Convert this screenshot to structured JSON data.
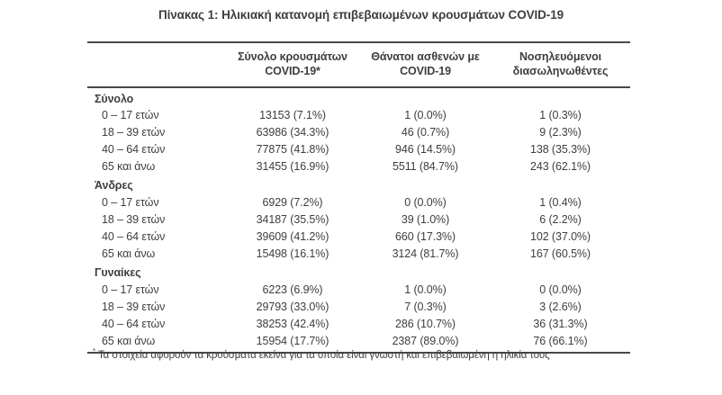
{
  "title": "Πίνακας 1: Ηλικιακή κατανομή επιβεβαιωμένων κρουσμάτων COVID-19",
  "colors": {
    "text": "#3e3e40",
    "rule_lines": "#49494b",
    "background": "#ffffff"
  },
  "table": {
    "columns": [
      {
        "line1": "Σύνολο κρουσμάτων",
        "line2": "COVID-19*"
      },
      {
        "line1": "Θάνατοι ασθενών με",
        "line2": "COVID-19"
      },
      {
        "line1": "Νοσηλευόμενοι",
        "line2": "διασωληνωθέντες"
      }
    ],
    "sections": [
      {
        "label": "Σύνολο",
        "rows": [
          {
            "age": "0 – 17 ετών",
            "cases": "13153 (7.1%)",
            "deaths": "1 (0.0%)",
            "intubated": "1 (0.3%)"
          },
          {
            "age": "18 – 39 ετών",
            "cases": "63986 (34.3%)",
            "deaths": "46 (0.7%)",
            "intubated": "9 (2.3%)"
          },
          {
            "age": "40 – 64 ετών",
            "cases": "77875 (41.8%)",
            "deaths": "946 (14.5%)",
            "intubated": "138 (35.3%)"
          },
          {
            "age": "65 και άνω",
            "cases": "31455 (16.9%)",
            "deaths": "5511 (84.7%)",
            "intubated": "243 (62.1%)"
          }
        ]
      },
      {
        "label": "Άνδρες",
        "rows": [
          {
            "age": "0 – 17 ετών",
            "cases": "6929 (7.2%)",
            "deaths": "0 (0.0%)",
            "intubated": "1 (0.4%)"
          },
          {
            "age": "18 – 39 ετών",
            "cases": "34187 (35.5%)",
            "deaths": "39 (1.0%)",
            "intubated": "6 (2.2%)"
          },
          {
            "age": "40 – 64 ετών",
            "cases": "39609 (41.2%)",
            "deaths": "660 (17.3%)",
            "intubated": "102 (37.0%)"
          },
          {
            "age": "65 και άνω",
            "cases": "15498 (16.1%)",
            "deaths": "3124 (81.7%)",
            "intubated": "167 (60.5%)"
          }
        ]
      },
      {
        "label": "Γυναίκες",
        "rows": [
          {
            "age": "0 – 17 ετών",
            "cases": "6223 (6.9%)",
            "deaths": "1 (0.0%)",
            "intubated": "0 (0.0%)"
          },
          {
            "age": "18 – 39 ετών",
            "cases": "29793 (33.0%)",
            "deaths": "7 (0.3%)",
            "intubated": "3 (2.6%)"
          },
          {
            "age": "40 – 64 ετών",
            "cases": "38253 (42.4%)",
            "deaths": "286 (10.7%)",
            "intubated": "36 (31.3%)"
          },
          {
            "age": "65 και άνω",
            "cases": "15954 (17.7%)",
            "deaths": "2387 (89.0%)",
            "intubated": "76 (66.1%)"
          }
        ]
      }
    ]
  },
  "footnote": {
    "marker": "*",
    "text": "Τα στοιχεία αφορούν τα κρούσματα εκείνα για τα οποία είναι γνωστή και επιβεβαιωμένη η ηλικία τους"
  }
}
